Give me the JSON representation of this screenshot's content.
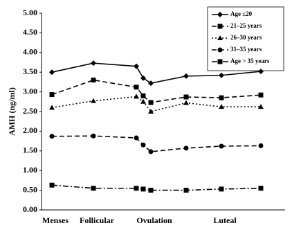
{
  "chart_data": {
    "type": "line",
    "y_label": "AMH (ng/ml)",
    "categories": [
      "Menses",
      "Follicular",
      null,
      null,
      "Ovulation",
      null,
      "Luteal",
      null
    ],
    "series": [
      {
        "name": "Age ≤20",
        "color": "#000000",
        "marker": "diamond",
        "line_style": "solid",
        "values": [
          3.5,
          3.73,
          3.65,
          3.35,
          3.22,
          3.4,
          3.42,
          3.52
        ]
      },
      {
        "name": "21–25 years",
        "color": "#000000",
        "marker": "square",
        "line_style": "dashed",
        "values": [
          2.93,
          3.3,
          3.12,
          2.9,
          2.73,
          2.87,
          2.85,
          2.92
        ]
      },
      {
        "name": "26–30 years",
        "color": "#000000",
        "marker": "triangle",
        "line_style": "dotted",
        "values": [
          2.6,
          2.77,
          2.88,
          2.75,
          2.5,
          2.72,
          2.62,
          2.62
        ]
      },
      {
        "name": "31–35 years",
        "color": "#000000",
        "marker": "circle",
        "line_style": "dashed",
        "values": [
          1.87,
          1.88,
          1.83,
          1.65,
          1.48,
          1.57,
          1.62,
          1.63
        ]
      },
      {
        "name": "Age > 35 years",
        "color": "#000000",
        "marker": "square",
        "line_style": "dashdot",
        "values": [
          0.63,
          0.55,
          0.55,
          0.53,
          0.5,
          0.5,
          0.53,
          0.55
        ]
      }
    ],
    "ylim": [
      0,
      5
    ],
    "yticks": [
      {
        "value": 0,
        "label": "0.00"
      },
      {
        "value": 0.5,
        "label": "0.50"
      },
      {
        "value": 1,
        "label": "1.00"
      },
      {
        "value": 1.5,
        "label": "1.50"
      },
      {
        "value": 2,
        "label": "2.00"
      },
      {
        "value": 2.5,
        "label": "2.50"
      },
      {
        "value": 3,
        "label": "3.00"
      },
      {
        "value": 3.5,
        "label": "3.50"
      },
      {
        "value": 4,
        "label": "4.00"
      },
      {
        "value": 4.5,
        "label": "4.50"
      },
      {
        "value": 5,
        "label": "5.00"
      }
    ],
    "grid": false,
    "legend": "top-right"
  }
}
